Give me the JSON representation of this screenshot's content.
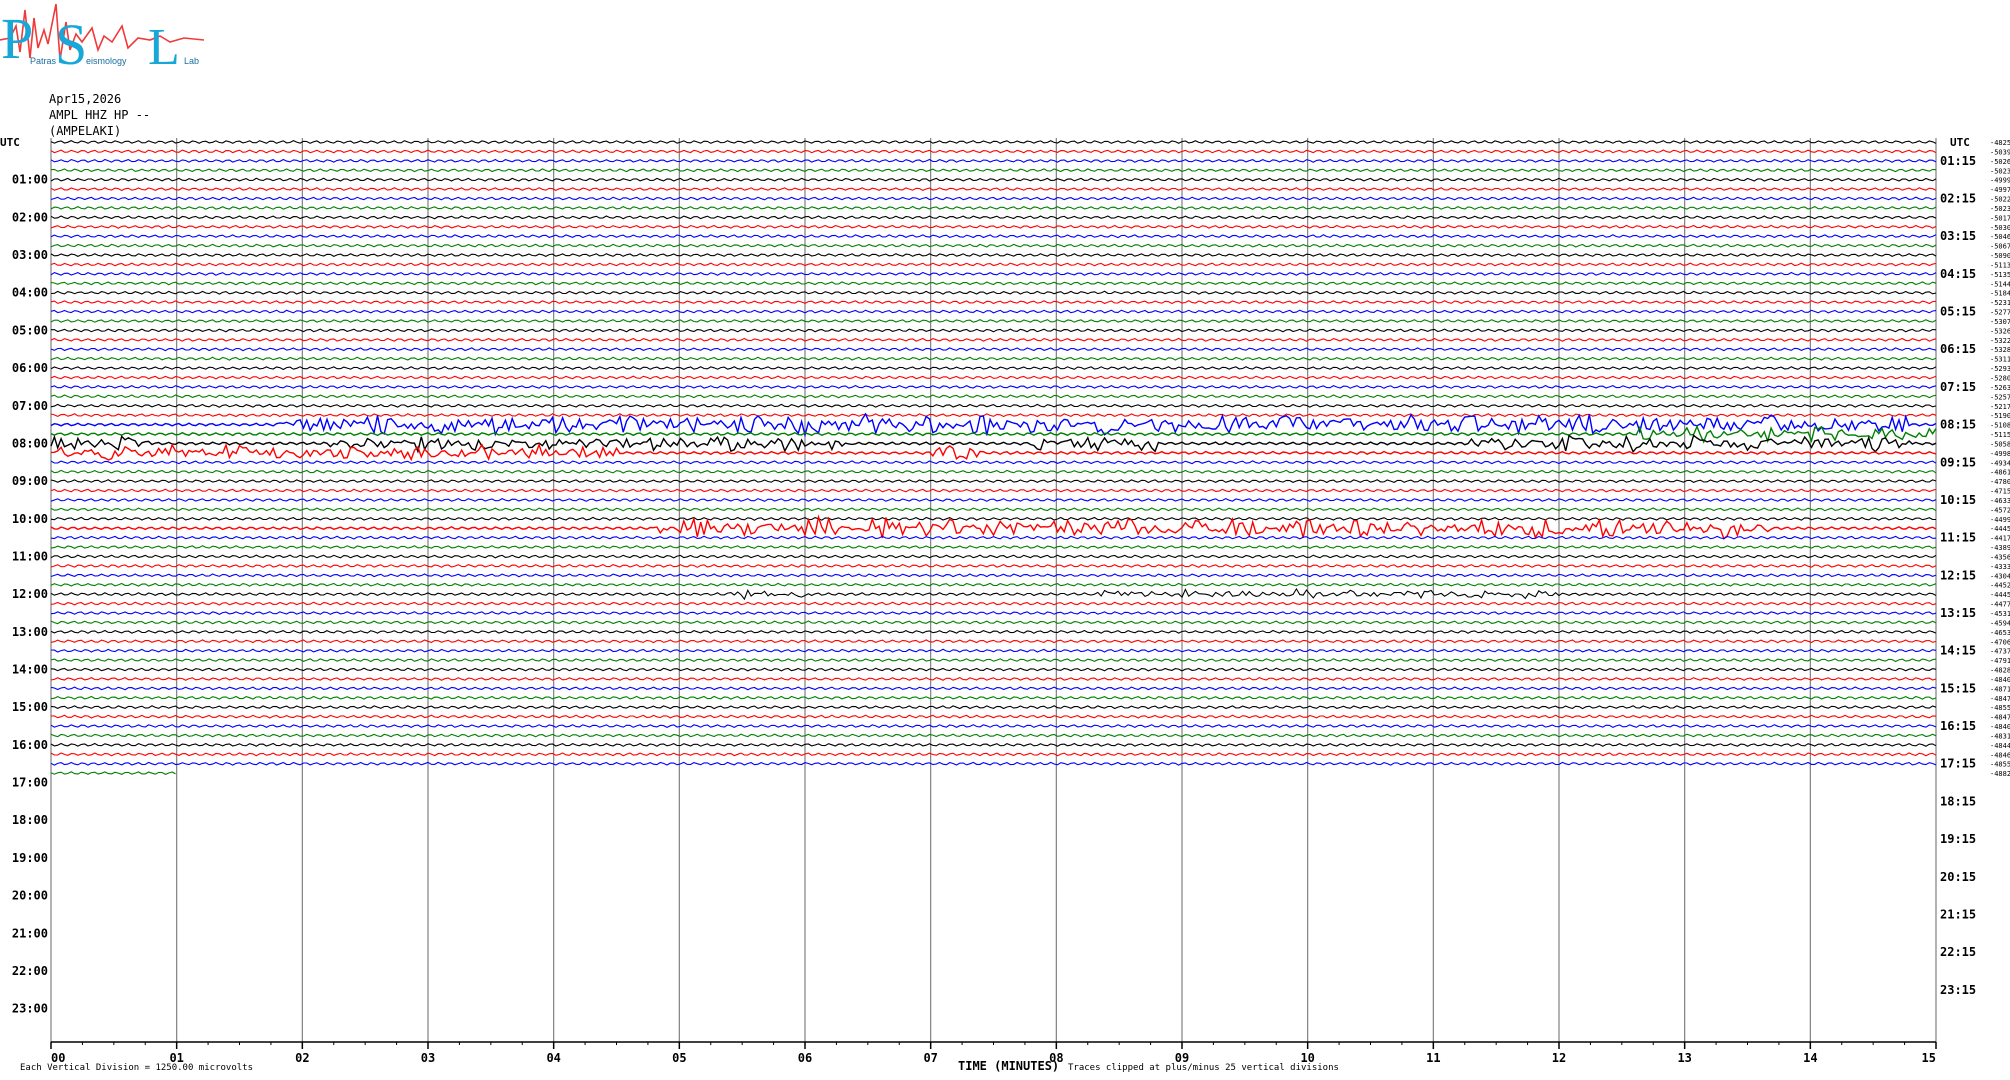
{
  "logo": {
    "letters": [
      "P",
      "S",
      "L"
    ],
    "small_text": [
      "Patras",
      "eismology",
      "Lab"
    ],
    "colors": {
      "letters": "#19a7d8",
      "wave": "#f03a3a"
    }
  },
  "header": {
    "date": "Apr15,2026",
    "station": "AMPL HHZ HP --",
    "site": "(AMPELAKI)"
  },
  "chart_data": {
    "type": "line",
    "title": "",
    "left_axis_label": "UTC",
    "right_axis_label": "UTC",
    "left_hour_labels": [
      "01:00",
      "02:00",
      "03:00",
      "04:00",
      "05:00",
      "06:00",
      "07:00",
      "08:00",
      "09:00",
      "10:00",
      "11:00",
      "12:00",
      "13:00",
      "14:00",
      "15:00",
      "16:00",
      "17:00",
      "18:00",
      "19:00",
      "20:00",
      "21:00",
      "22:00",
      "23:00"
    ],
    "right_hour_labels": [
      "01:15",
      "02:15",
      "03:15",
      "04:15",
      "05:15",
      "06:15",
      "07:15",
      "08:15",
      "09:15",
      "10:15",
      "11:15",
      "12:15",
      "13:15",
      "14:15",
      "15:15",
      "16:15",
      "17:15",
      "18:15",
      "19:15",
      "20:15",
      "21:15",
      "22:15",
      "23:15"
    ],
    "x_tick_labels": [
      "00",
      "01",
      "02",
      "03",
      "04",
      "05",
      "06",
      "07",
      "08",
      "09",
      "10",
      "11",
      "12",
      "13",
      "14",
      "15"
    ],
    "xlabel": "TIME (MINUTES)",
    "xlim": [
      0,
      15
    ],
    "rows_per_hour": 4,
    "hours_total": 24,
    "traces_recorded": 68,
    "trace_colors": [
      "#000000",
      "#ff0000",
      "#0000ff",
      "#008000"
    ],
    "trace_offsets": [
      -4825,
      -5039,
      -5026,
      -5023,
      -4999,
      -4997,
      -5022,
      -5023,
      -5017,
      -5030,
      -5046,
      -5067,
      -5090,
      -5113,
      -5135,
      -5144,
      -5184,
      -5231,
      -5277,
      -5307,
      -5326,
      -5322,
      -5328,
      -5311,
      -5293,
      -5280,
      -5263,
      -5257,
      -5217,
      -5190,
      -5108,
      -5115,
      -5058,
      -4998,
      -4934,
      -4861,
      -4780,
      -4715,
      -4633,
      -4572,
      -4499,
      -4445,
      -4417,
      -4389,
      -4356,
      -4333,
      -4304,
      -4452,
      -4445,
      -4477,
      -4531,
      -4594,
      -4653,
      -4706,
      -4737,
      -4791,
      -4828,
      -4840,
      -4871,
      -4847,
      -4855,
      -4847,
      -4840,
      -4831,
      -4844,
      -4846,
      -4855,
      -4882
    ],
    "last_trace_minutes": 1.0,
    "event_bursts": [
      {
        "row": 30,
        "from": 1.8,
        "to": 14.8,
        "intensity": 4.0
      },
      {
        "row": 31,
        "from": 12.6,
        "to": 15.0,
        "intensity": 3.0
      },
      {
        "row": 32,
        "from": 0.0,
        "to": 0.8,
        "intensity": 3.0
      },
      {
        "row": 32,
        "from": 2.2,
        "to": 6.4,
        "intensity": 3.0
      },
      {
        "row": 32,
        "from": 7.8,
        "to": 8.8,
        "intensity": 3.0
      },
      {
        "row": 32,
        "from": 11.3,
        "to": 14.8,
        "intensity": 3.0
      },
      {
        "row": 33,
        "from": 0.0,
        "to": 4.5,
        "intensity": 3.0
      },
      {
        "row": 33,
        "from": 7.0,
        "to": 7.4,
        "intensity": 2.5
      },
      {
        "row": 41,
        "from": 4.8,
        "to": 13.7,
        "intensity": 4.0
      },
      {
        "row": 48,
        "from": 5.4,
        "to": 6.0,
        "intensity": 1.8
      },
      {
        "row": 48,
        "from": 8.3,
        "to": 12.0,
        "intensity": 1.6
      }
    ],
    "footer_left": "Each Vertical Division = 1250.00 microvolts",
    "footer_right": "Traces clipped at plus/minus 25 vertical divisions",
    "grid_vertical": true
  }
}
